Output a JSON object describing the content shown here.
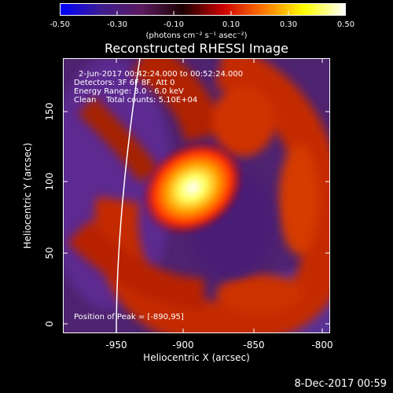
{
  "colorbar": {
    "ticks": [
      "-0.50",
      "-0.30",
      "-0.10",
      "0.10",
      "0.30",
      "0.50"
    ],
    "units": "(photons cm⁻² s⁻¹ asec⁻²)",
    "stops": [
      "#0000ff",
      "#3d1d8f",
      "#5a1a5e",
      "#1a0000",
      "#cc0000",
      "#ff7700",
      "#ffff00",
      "#ffffff"
    ]
  },
  "title": "Reconstructed RHESSI Image",
  "annotations": {
    "time": "2-Jun-2017 00:42:24.000 to 00:52:24.000",
    "detectors": "Detectors: 3F 6F 8F, Att 0",
    "energy": "Energy Range: 3.0 - 6.0 keV",
    "clean": "Clean    Total counts: 5.10E+04",
    "peak": "Position of Peak = [-890,95]"
  },
  "axes": {
    "xlabel": "Heliocentric X (arcsec)",
    "ylabel": "Heliocentric Y (arcsec)",
    "xticks": [
      "-950",
      "-900",
      "-850",
      "-800"
    ],
    "yticks": [
      "0",
      "50",
      "100",
      "150"
    ]
  },
  "footer": "8-Dec-2017 00:59"
}
